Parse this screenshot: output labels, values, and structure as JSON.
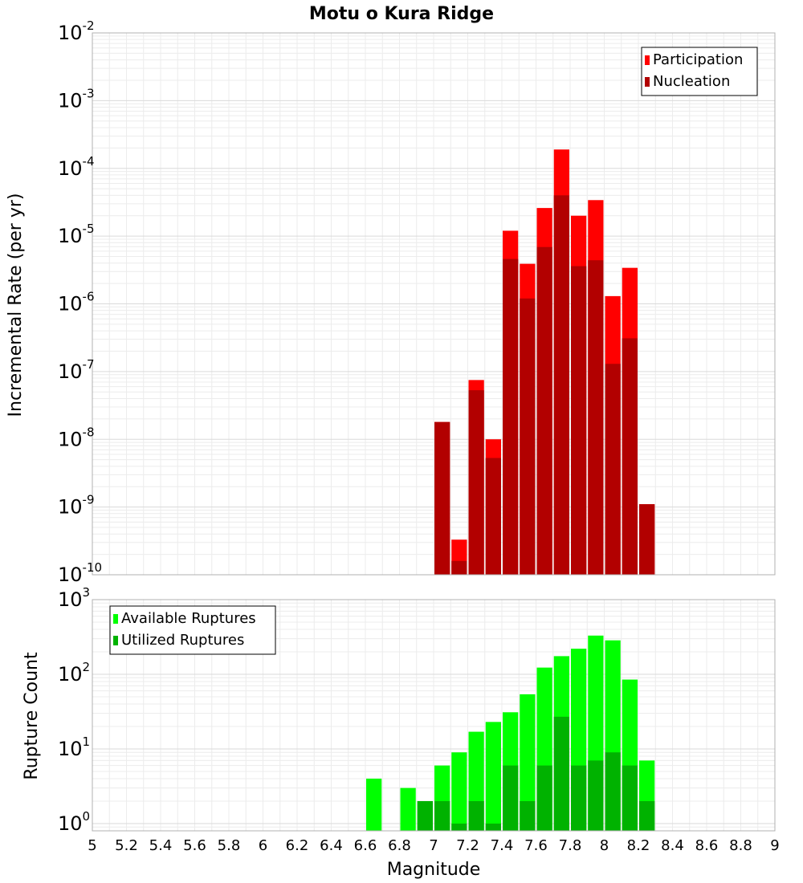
{
  "title": "Motu o Kura Ridge",
  "xlabel": "Magnitude",
  "chart_data": [
    {
      "type": "bar",
      "ylabel": "Incremental Rate (per yr)",
      "yscale": "log",
      "ylim": [
        1e-10,
        0.01
      ],
      "xlim": [
        5,
        9
      ],
      "grid": true,
      "legend_position": "top-right",
      "series": [
        {
          "name": "Participation",
          "color": "#ff0000",
          "x": [
            7.05,
            7.15,
            7.25,
            7.35,
            7.45,
            7.55,
            7.65,
            7.75,
            7.85,
            7.95,
            8.05,
            8.15,
            8.25
          ],
          "values": [
            1.8e-08,
            3.3e-10,
            7.5e-08,
            1e-08,
            1.2e-05,
            3.9e-06,
            2.6e-05,
            0.00019,
            2e-05,
            3.4e-05,
            1.3e-06,
            3.4e-06,
            1.1e-09
          ]
        },
        {
          "name": "Nucleation",
          "color": "#b20000",
          "x": [
            7.05,
            7.15,
            7.25,
            7.35,
            7.45,
            7.55,
            7.65,
            7.75,
            7.85,
            7.95,
            8.05,
            8.15,
            8.25
          ],
          "values": [
            1.8e-08,
            1.6e-10,
            5.3e-08,
            5.3e-09,
            4.6e-06,
            1.2e-06,
            6.9e-06,
            4e-05,
            3.6e-06,
            4.4e-06,
            1.3e-07,
            3.1e-07,
            1.1e-09
          ]
        }
      ]
    },
    {
      "type": "bar",
      "ylabel": "Rupture Count",
      "yscale": "log",
      "ylim": [
        0.8,
        1000
      ],
      "xlim": [
        5,
        9
      ],
      "grid": true,
      "legend_position": "top-left",
      "series": [
        {
          "name": "Available Ruptures",
          "color": "#00ff00",
          "x": [
            6.65,
            6.85,
            6.95,
            7.05,
            7.15,
            7.25,
            7.35,
            7.45,
            7.55,
            7.65,
            7.75,
            7.85,
            7.95,
            8.05,
            8.15,
            8.25
          ],
          "values": [
            4,
            3,
            2,
            6,
            9,
            17,
            23,
            31,
            54,
            123,
            175,
            220,
            330,
            285,
            85,
            7
          ]
        },
        {
          "name": "Utilized Ruptures",
          "color": "#00b200",
          "x": [
            6.95,
            7.05,
            7.15,
            7.25,
            7.35,
            7.45,
            7.55,
            7.65,
            7.75,
            7.85,
            7.95,
            8.05,
            8.15,
            8.25
          ],
          "values": [
            2,
            2,
            1,
            2,
            1,
            6,
            2,
            6,
            27,
            6,
            7,
            9,
            6,
            2
          ]
        }
      ]
    }
  ],
  "xticks": [
    "5",
    "5.2",
    "5.4",
    "5.6",
    "5.8",
    "6",
    "6.2",
    "6.4",
    "6.6",
    "6.8",
    "7",
    "7.2",
    "7.4",
    "7.6",
    "7.8",
    "8",
    "8.2",
    "8.4",
    "8.6",
    "8.8",
    "9"
  ],
  "top_yticks": [
    {
      "base": "10",
      "exp": "-10"
    },
    {
      "base": "10",
      "exp": "-9"
    },
    {
      "base": "10",
      "exp": "-8"
    },
    {
      "base": "10",
      "exp": "-7"
    },
    {
      "base": "10",
      "exp": "-6"
    },
    {
      "base": "10",
      "exp": "-5"
    },
    {
      "base": "10",
      "exp": "-4"
    },
    {
      "base": "10",
      "exp": "-3"
    },
    {
      "base": "10",
      "exp": "-2"
    }
  ],
  "bottom_yticks": [
    {
      "base": "10",
      "exp": "0"
    },
    {
      "base": "10",
      "exp": "1"
    },
    {
      "base": "10",
      "exp": "2"
    },
    {
      "base": "10",
      "exp": "3"
    }
  ]
}
